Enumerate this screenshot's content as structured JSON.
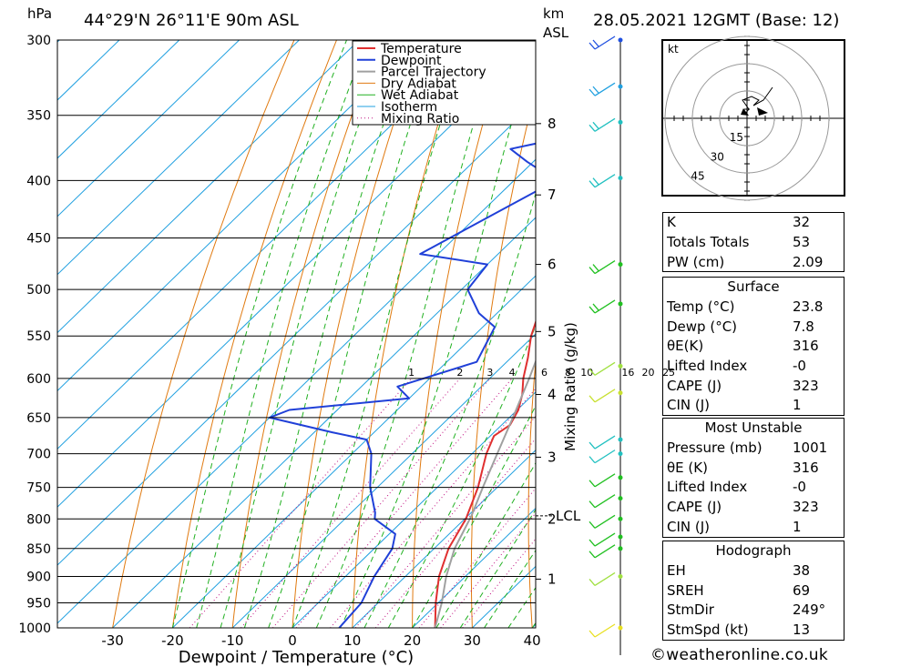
{
  "header": {
    "hpa_unit": "hPa",
    "location": "44°29'N  26°11'E  90m  ASL",
    "km_unit": "km",
    "asl_unit": "ASL",
    "datetime": "28.05.2021  12GMT  (Base: 12)"
  },
  "chart_data": {
    "type": "line",
    "title": "Skew-T log-P diagram",
    "xlabel": "Dewpoint / Temperature (°C)",
    "ylabel": "hPa",
    "y2label": "km ASL",
    "mixing_label": "Mixing Ratio (g/kg)",
    "xlim": [
      -40,
      40
    ],
    "ylim": [
      1000,
      300
    ],
    "x_ticks": [
      -30,
      -20,
      -10,
      0,
      10,
      20,
      30,
      40
    ],
    "pressure_levels": [
      300,
      350,
      400,
      450,
      500,
      550,
      600,
      650,
      700,
      750,
      800,
      850,
      900,
      950,
      1000
    ],
    "height_ticks": [
      {
        "km": "1",
        "p": 905
      },
      {
        "km": "2",
        "p": 800
      },
      {
        "km": "3",
        "p": 705
      },
      {
        "km": "4",
        "p": 620
      },
      {
        "km": "5",
        "p": 545
      },
      {
        "km": "6",
        "p": 475
      },
      {
        "km": "7",
        "p": 412
      },
      {
        "km": "8",
        "p": 356
      }
    ],
    "lcl": {
      "label": "LCL",
      "p": 795
    },
    "mixing_ratio_labels": [
      "1",
      "2",
      "3",
      "4",
      "6",
      "8",
      "10",
      "16",
      "20",
      "25"
    ],
    "mixing_ratio_values": [
      1,
      2,
      3,
      4,
      6,
      8,
      10,
      16,
      20,
      25
    ],
    "legend": [
      "Temperature",
      "Dewpoint",
      "Parcel Trajectory",
      "Dry Adiabat",
      "Wet Adiabat",
      "Isotherm",
      "Mixing Ratio"
    ],
    "colors": {
      "temperature": "#e03030",
      "dewpoint": "#2040d8",
      "parcel": "#a0a0a0",
      "dry_adiabat": "#e07a10",
      "wet_adiabat": "#20b020",
      "isotherm": "#20a0e0",
      "mixing_ratio": "#c01080"
    },
    "series": [
      {
        "name": "Temperature",
        "points": [
          [
            1000,
            23.8
          ],
          [
            950,
            19.6
          ],
          [
            900,
            15.6
          ],
          [
            850,
            12.4
          ],
          [
            800,
            10.2
          ],
          [
            750,
            6.8
          ],
          [
            700,
            2.4
          ],
          [
            675,
            0.6
          ],
          [
            660,
            1.4
          ],
          [
            640,
            0.2
          ],
          [
            620,
            -1.8
          ],
          [
            600,
            -4.4
          ],
          [
            575,
            -7.2
          ],
          [
            550,
            -10.4
          ],
          [
            500,
            -15.8
          ],
          [
            475,
            -19.6
          ],
          [
            450,
            -23.0
          ],
          [
            400,
            -30.8
          ],
          [
            350,
            -39.8
          ],
          [
            330,
            -43.8
          ],
          [
            300,
            -48.0
          ]
        ]
      },
      {
        "name": "Dewpoint",
        "points": [
          [
            1000,
            7.8
          ],
          [
            950,
            7.2
          ],
          [
            900,
            4.8
          ],
          [
            850,
            3.0
          ],
          [
            825,
            1.0
          ],
          [
            800,
            -5.0
          ],
          [
            790,
            -6.0
          ],
          [
            750,
            -11.2
          ],
          [
            700,
            -16.8
          ],
          [
            680,
            -20.0
          ],
          [
            670,
            -27.0
          ],
          [
            650,
            -40.0
          ],
          [
            640,
            -38.0
          ],
          [
            625,
            -20.0
          ],
          [
            610,
            -24.0
          ],
          [
            580,
            -15.0
          ],
          [
            540,
            -18.0
          ],
          [
            525,
            -23.0
          ],
          [
            500,
            -29.0
          ],
          [
            475,
            -30.0
          ],
          [
            465,
            -43.0
          ],
          [
            400,
            -33.0
          ],
          [
            385,
            -41.0
          ],
          [
            375,
            -46.0
          ],
          [
            370,
            -42.0
          ],
          [
            350,
            -45.0
          ],
          [
            335,
            -43.5
          ],
          [
            330,
            -48.0
          ],
          [
            320,
            -52.0
          ],
          [
            310,
            -51.0
          ],
          [
            300,
            -53.0
          ]
        ]
      },
      {
        "name": "Parcel Trajectory",
        "points": [
          [
            1000,
            23.8
          ],
          [
            950,
            20.6
          ],
          [
            900,
            16.8
          ],
          [
            850,
            13.4
          ],
          [
            795,
            10.6
          ],
          [
            750,
            7.6
          ],
          [
            700,
            4.2
          ],
          [
            650,
            0.6
          ],
          [
            600,
            -3.4
          ],
          [
            550,
            -8.0
          ],
          [
            500,
            -13.2
          ],
          [
            450,
            -19.4
          ],
          [
            400,
            -26.8
          ],
          [
            350,
            -35.4
          ],
          [
            300,
            -46.0
          ]
        ]
      }
    ]
  },
  "hodograph": {
    "unit": "kt",
    "ring_labels": [
      "15",
      "30",
      "45"
    ]
  },
  "indices": {
    "rows": [
      {
        "label": "K",
        "value": "32"
      },
      {
        "label": "Totals Totals",
        "value": "53"
      },
      {
        "label": "PW (cm)",
        "value": "2.09"
      }
    ]
  },
  "surface": {
    "title": "Surface",
    "rows": [
      {
        "label": "Temp (°C)",
        "value": "23.8"
      },
      {
        "label": "Dewp (°C)",
        "value": "7.8"
      },
      {
        "label": "θE(K)",
        "value": "316"
      },
      {
        "label": "Lifted Index",
        "value": "-0"
      },
      {
        "label": "CAPE (J)",
        "value": "323"
      },
      {
        "label": "CIN (J)",
        "value": "1"
      }
    ]
  },
  "most_unstable": {
    "title": "Most Unstable",
    "rows": [
      {
        "label": "Pressure (mb)",
        "value": "1001"
      },
      {
        "label": "θE (K)",
        "value": "316"
      },
      {
        "label": "Lifted Index",
        "value": "-0"
      },
      {
        "label": "CAPE (J)",
        "value": "323"
      },
      {
        "label": "CIN (J)",
        "value": "1"
      }
    ]
  },
  "hodograph_table": {
    "title": "Hodograph",
    "rows": [
      {
        "label": "EH",
        "value": "38"
      },
      {
        "label": "SREH",
        "value": "69"
      },
      {
        "label": "StmDir",
        "value": "249°"
      },
      {
        "label": "StmSpd (kt)",
        "value": "13"
      }
    ]
  },
  "copyright": "©weatheronline.co.uk"
}
